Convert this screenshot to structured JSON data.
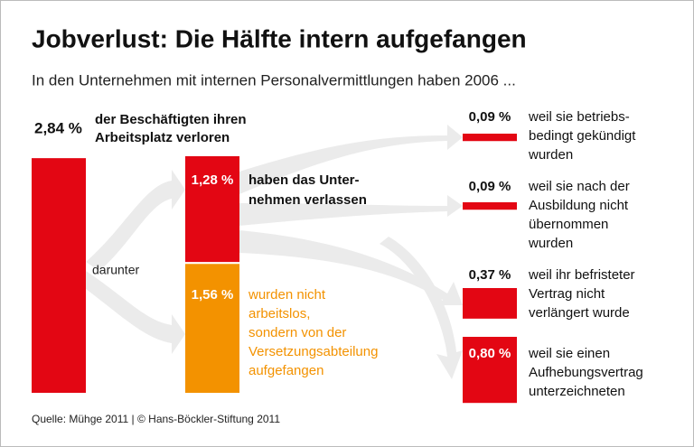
{
  "title": "Jobverlust: Die Hälfte intern aufgefangen",
  "subtitle": "In den Unternehmen mit internen Personalvermittlungen haben 2006 ...",
  "total": {
    "value": 2.84,
    "label": "2,84 %",
    "text": [
      "der Beschäftigten ihren",
      "Arbeitsplatz verloren"
    ]
  },
  "split_label": "darunter",
  "groups": [
    {
      "value": 1.28,
      "label": "1,28 %",
      "text": [
        "haben das Unter-",
        "nehmen verlassen"
      ]
    },
    {
      "value": 1.56,
      "label": "1,56 %",
      "text": [
        "wurden nicht",
        "arbeitslos,",
        "sondern von der",
        "Versetzungsabteilung",
        "aufgefangen"
      ]
    }
  ],
  "reasons": [
    {
      "value": 0.09,
      "label": "0,09 %",
      "text": [
        "weil sie betriebs-",
        "bedingt gekündigt",
        "wurden"
      ]
    },
    {
      "value": 0.09,
      "label": "0,09 %",
      "text": [
        "weil sie nach der",
        "Ausbildung nicht",
        "übernommen",
        "wurden"
      ]
    },
    {
      "value": 0.37,
      "label": "0,37 %",
      "text": [
        "weil ihr befristeter",
        "Vertrag nicht",
        "verlängert wurde"
      ]
    },
    {
      "value": 0.8,
      "label": "0,80 %",
      "text": [
        "weil sie einen",
        "Aufhebungsvertrag",
        "unterzeichneten"
      ]
    }
  ],
  "source": "Quelle: Mühge 2011 | © Hans-Böckler-Stiftung 2011"
}
